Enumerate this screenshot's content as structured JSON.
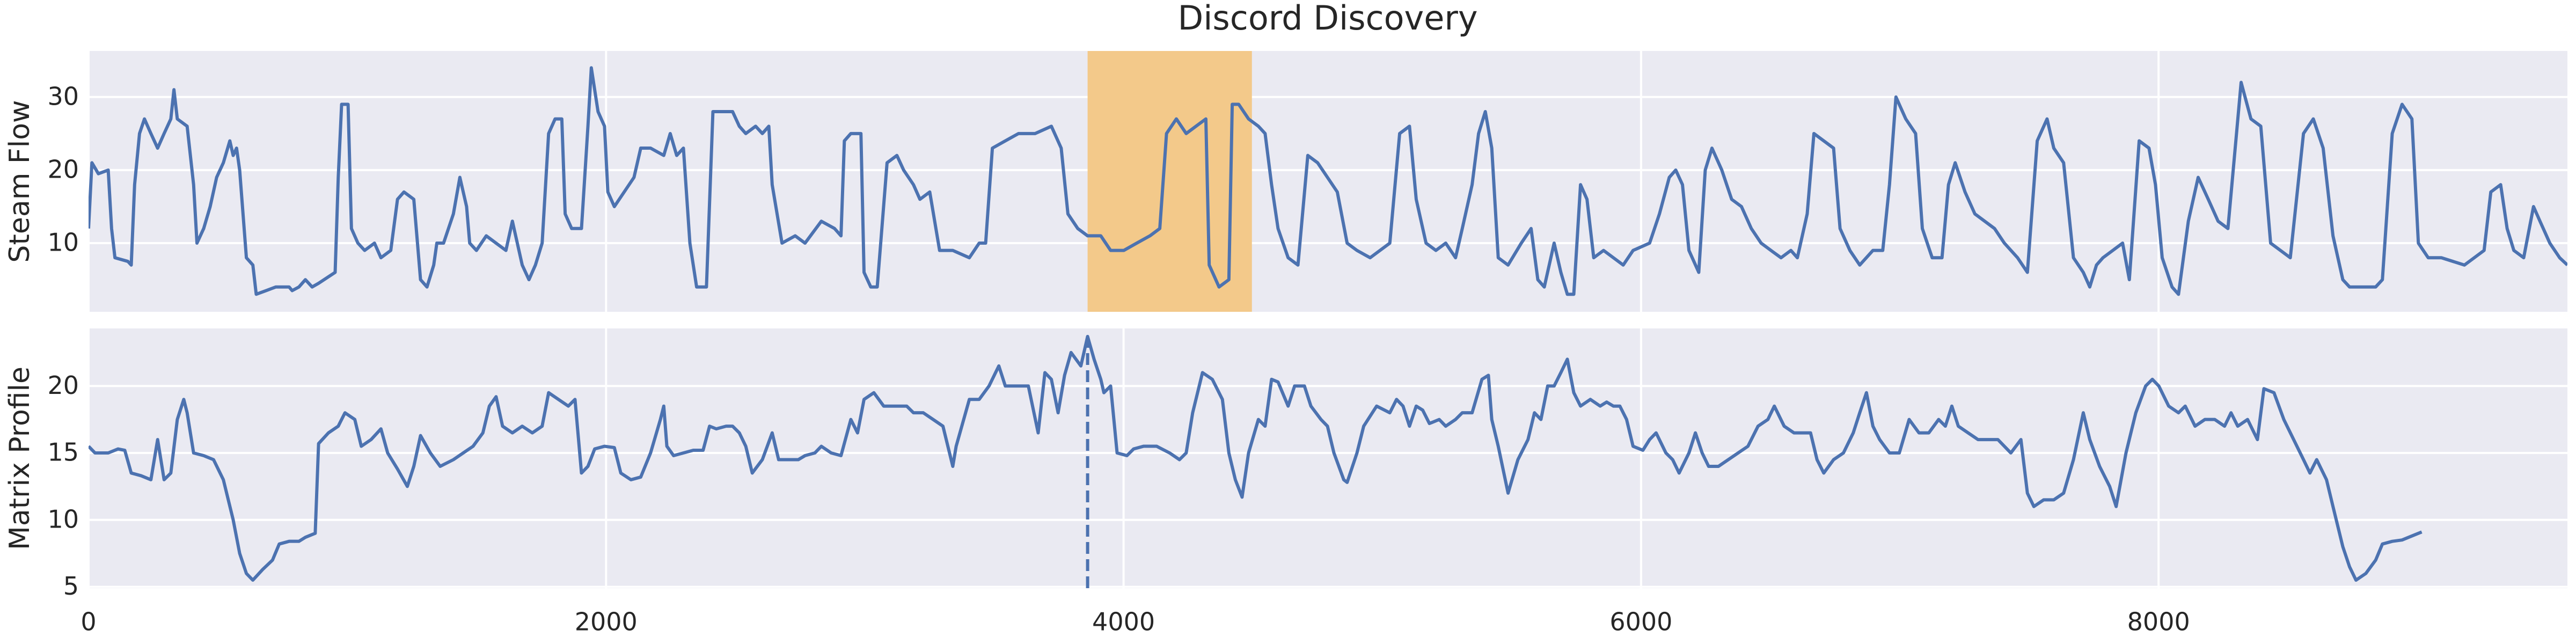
{
  "chart_data": [
    {
      "type": "line",
      "title": "Discord Discovery",
      "ylabel": "Steam Flow",
      "x": [
        0,
        13,
        38,
        76,
        89,
        102,
        152,
        165,
        178,
        197,
        216,
        241,
        267,
        292,
        318,
        330,
        343,
        381,
        406,
        419,
        445,
        470,
        495,
        521,
        546,
        559,
        572,
        584,
        610,
        635,
        648,
        686,
        724,
        775,
        787,
        813,
        838,
        864,
        889,
        953,
        965,
        978,
        1003,
        1016,
        1041,
        1067,
        1105,
        1130,
        1168,
        1194,
        1219,
        1257,
        1283,
        1308,
        1334,
        1346,
        1372,
        1410,
        1435,
        1461,
        1473,
        1499,
        1537,
        1575,
        1613,
        1638,
        1676,
        1702,
        1727,
        1753,
        1778,
        1803,
        1829,
        1842,
        1867,
        1905,
        1930,
        1943,
        1969,
        1994,
        2007,
        2032,
        2070,
        2108,
        2134,
        2172,
        2223,
        2248,
        2273,
        2299,
        2324,
        2350,
        2388,
        2413,
        2451,
        2489,
        2515,
        2540,
        2578,
        2604,
        2629,
        2642,
        2680,
        2731,
        2769,
        2832,
        2883,
        2908,
        2921,
        2946,
        2985,
        2997,
        3023,
        3048,
        3086,
        3124,
        3150,
        3188,
        3213,
        3251,
        3289,
        3340,
        3404,
        3442,
        3467,
        3493,
        3543,
        3594,
        3658,
        3721,
        3759,
        3785,
        3823,
        3861,
        3912,
        3950,
        4001,
        4051,
        4102,
        4140,
        4166,
        4204,
        4242,
        4280,
        4318,
        4331,
        4369,
        4407,
        4420,
        4445,
        4483,
        4521,
        4547,
        4572,
        4597,
        4636,
        4674,
        4712,
        4750,
        4788,
        4826,
        4864,
        4902,
        4953,
        4991,
        5029,
        5067,
        5105,
        5131,
        5169,
        5207,
        5245,
        5283,
        5309,
        5347,
        5372,
        5398,
        5423,
        5448,
        5486,
        5537,
        5575,
        5601,
        5626,
        5664,
        5690,
        5715,
        5740,
        5766,
        5791,
        5817,
        5855,
        5893,
        5931,
        5969,
        6033,
        6071,
        6109,
        6134,
        6160,
        6185,
        6223,
        6248,
        6274,
        6312,
        6350,
        6388,
        6426,
        6464,
        6502,
        6541,
        6579,
        6604,
        6642,
        6668,
        6706,
        6744,
        6769,
        6807,
        6845,
        6896,
        6934,
        6960,
        6985,
        7023,
        7061,
        7087,
        7125,
        7163,
        7188,
        7214,
        7252,
        7290,
        7328,
        7366,
        7404,
        7455,
        7493,
        7531,
        7569,
        7595,
        7633,
        7671,
        7709,
        7734,
        7760,
        7785,
        7823,
        7861,
        7887,
        7925,
        7963,
        7988,
        8014,
        8052,
        8077,
        8115,
        8153,
        8192,
        8230,
        8268,
        8319,
        8357,
        8395,
        8433,
        8471,
        8509,
        8560,
        8598,
        8636,
        8674,
        8712,
        8738,
        8839,
        8865,
        8903,
        8941,
        8979,
        9004,
        9042,
        9093,
        9182,
        9258,
        9284,
        9322,
        9347,
        9373,
        9411,
        9449,
        9474,
        9512,
        9550,
        9580
      ],
      "series": [
        {
          "color": "#4c72b0",
          "values": [
            12,
            21,
            19.5,
            20,
            12,
            8,
            7.5,
            7,
            18,
            25,
            27,
            25,
            23,
            25,
            27,
            31,
            27,
            26,
            18,
            10,
            12,
            15,
            19,
            21,
            24,
            22,
            23,
            20,
            8,
            7,
            3,
            3.5,
            4,
            4,
            3.5,
            4,
            5,
            4,
            4.5,
            6,
            19,
            29,
            29,
            12,
            10,
            9,
            10,
            8,
            9,
            16,
            17,
            16,
            5,
            4,
            7,
            10,
            10,
            14,
            19,
            15,
            10,
            9,
            11,
            10,
            9,
            13,
            7,
            5,
            7,
            10,
            25,
            27,
            27,
            14,
            12,
            12,
            26,
            34,
            28,
            26,
            17,
            15,
            17,
            19,
            23,
            23,
            22,
            25,
            22,
            23,
            10,
            4,
            4,
            28,
            28,
            28,
            26,
            25,
            26,
            25,
            26,
            18,
            10,
            11,
            10,
            13,
            12,
            11,
            24,
            25,
            25,
            6,
            4,
            4,
            21,
            22,
            20,
            18,
            16,
            17,
            9,
            9,
            8,
            10,
            10,
            23,
            24,
            25,
            25,
            26,
            23,
            14,
            12,
            11,
            11,
            9,
            9,
            10,
            11,
            12,
            25,
            27,
            25,
            26,
            27,
            7,
            4,
            5,
            29,
            29,
            27,
            26,
            25,
            18,
            12,
            8,
            7,
            22,
            21,
            19,
            17,
            10,
            9,
            8,
            9,
            10,
            25,
            26,
            16,
            10,
            9,
            10,
            8,
            12,
            18,
            25,
            28,
            23,
            8,
            7,
            10,
            12,
            5,
            4,
            10,
            6,
            3,
            3,
            18,
            16,
            8,
            9,
            8,
            7,
            9,
            10,
            14,
            19,
            20,
            18,
            9,
            6,
            20,
            23,
            20,
            16,
            15,
            12,
            10,
            9,
            8,
            9,
            8,
            14,
            25,
            24,
            23,
            12,
            9,
            7,
            9,
            9,
            18,
            30,
            27,
            25,
            12,
            8,
            8,
            18,
            21,
            17,
            14,
            13,
            12,
            10,
            8,
            6,
            24,
            27,
            23,
            21,
            8,
            6,
            4,
            7,
            8,
            9,
            10,
            5,
            24,
            23,
            18,
            8,
            4,
            3,
            13,
            19,
            16,
            13,
            12,
            32,
            27,
            26,
            10,
            9,
            8,
            25,
            27,
            23,
            11,
            5,
            4,
            4,
            5,
            25,
            29,
            27,
            10,
            8,
            8,
            7,
            9,
            17,
            18,
            12,
            9,
            8,
            15,
            13,
            10,
            8,
            7
          ]
        }
      ],
      "xlim": [
        0,
        9580
      ],
      "xticks": [
        0,
        2000,
        4000,
        6000,
        8000
      ],
      "ylim": [
        0.6,
        36.3
      ],
      "yticks": [
        10,
        20,
        30
      ],
      "grid": true,
      "span": {
        "start": 3861,
        "end": 4496,
        "color": "#f3c98a"
      }
    },
    {
      "type": "line",
      "ylabel": "Matrix Profile",
      "x": [
        0,
        25,
        76,
        114,
        140,
        165,
        203,
        241,
        267,
        292,
        318,
        343,
        368,
        381,
        406,
        445,
        483,
        521,
        559,
        584,
        610,
        635,
        673,
        711,
        737,
        775,
        813,
        838,
        876,
        889,
        927,
        965,
        991,
        1029,
        1054,
        1092,
        1130,
        1156,
        1194,
        1232,
        1257,
        1283,
        1321,
        1359,
        1410,
        1448,
        1486,
        1524,
        1549,
        1575,
        1600,
        1638,
        1676,
        1715,
        1753,
        1778,
        1816,
        1854,
        1880,
        1905,
        1930,
        1956,
        1994,
        2032,
        2057,
        2096,
        2134,
        2172,
        2210,
        2223,
        2235,
        2261,
        2299,
        2337,
        2375,
        2400,
        2426,
        2464,
        2489,
        2515,
        2540,
        2565,
        2604,
        2642,
        2667,
        2705,
        2743,
        2769,
        2807,
        2832,
        2870,
        2908,
        2946,
        2972,
        2997,
        3035,
        3073,
        3111,
        3162,
        3188,
        3226,
        3264,
        3302,
        3340,
        3353,
        3404,
        3442,
        3480,
        3518,
        3543,
        3581,
        3632,
        3670,
        3696,
        3721,
        3747,
        3772,
        3797,
        3835,
        3861,
        3886,
        3912,
        3924,
        3950,
        3975,
        4013,
        4039,
        4077,
        4128,
        4178,
        4216,
        4242,
        4267,
        4305,
        4343,
        4382,
        4407,
        4432,
        4458,
        4483,
        4521,
        4547,
        4572,
        4597,
        4636,
        4661,
        4699,
        4724,
        4763,
        4788,
        4813,
        4851,
        4864,
        4902,
        4928,
        4978,
        5029,
        5055,
        5080,
        5105,
        5131,
        5156,
        5182,
        5220,
        5245,
        5283,
        5309,
        5347,
        5385,
        5410,
        5423,
        5448,
        5486,
        5524,
        5563,
        5588,
        5613,
        5639,
        5664,
        5690,
        5715,
        5740,
        5766,
        5804,
        5842,
        5867,
        5893,
        5918,
        5944,
        5969,
        6007,
        6033,
        6058,
        6096,
        6122,
        6147,
        6185,
        6210,
        6236,
        6261,
        6299,
        6337,
        6375,
        6413,
        6452,
        6490,
        6515,
        6553,
        6591,
        6617,
        6655,
        6680,
        6706,
        6744,
        6782,
        6820,
        6845,
        6871,
        6896,
        6922,
        6960,
        6998,
        7036,
        7074,
        7112,
        7150,
        7176,
        7201,
        7226,
        7264,
        7302,
        7340,
        7379,
        7404,
        7429,
        7468,
        7493,
        7518,
        7556,
        7595,
        7633,
        7671,
        7709,
        7734,
        7772,
        7811,
        7836,
        7874,
        7912,
        7950,
        7976,
        8001,
        8039,
        8077,
        8103,
        8141,
        8179,
        8217,
        8255,
        8280,
        8306,
        8344,
        8382,
        8407,
        8446,
        8484,
        8522,
        8560,
        8585,
        8611,
        8649,
        8674,
        8712,
        8738,
        8763,
        8801,
        8839,
        8865,
        8903,
        8941,
        8979,
        9017
      ],
      "series": [
        {
          "color": "#4c72b0",
          "values": [
            15.5,
            15,
            15,
            15.3,
            15.2,
            13.5,
            13.3,
            13,
            16,
            13,
            13.5,
            17.5,
            19,
            18,
            15,
            14.8,
            14.5,
            13,
            10,
            7.5,
            6,
            5.5,
            6.3,
            7,
            8.2,
            8.4,
            8.4,
            8.7,
            9,
            15.7,
            16.5,
            17,
            18,
            17.5,
            15.5,
            16,
            16.8,
            15,
            13.8,
            12.5,
            14,
            16.3,
            15,
            14,
            14.5,
            15,
            15.5,
            16.5,
            18.5,
            19.2,
            17,
            16.5,
            17,
            16.5,
            17,
            19.5,
            19,
            18.5,
            19,
            13.5,
            14,
            15.3,
            15.5,
            15.4,
            13.5,
            13,
            13.2,
            15,
            17.5,
            18.5,
            15.5,
            14.8,
            15,
            15.2,
            15.2,
            17,
            16.8,
            17,
            17,
            16.5,
            15.5,
            13.5,
            14.5,
            16.5,
            14.5,
            14.5,
            14.5,
            14.8,
            15,
            15.5,
            15,
            14.8,
            17.5,
            16.5,
            19,
            19.5,
            18.5,
            18.5,
            18.5,
            18,
            18,
            17.5,
            17,
            14,
            15.5,
            19,
            19,
            20,
            21.5,
            20,
            20,
            20,
            16.5,
            21,
            20.5,
            18,
            20.8,
            22.5,
            21.5,
            23.7,
            22,
            20.5,
            19.5,
            20,
            15,
            14.8,
            15.3,
            15.5,
            15.5,
            15,
            14.5,
            15,
            18,
            21,
            20.5,
            19,
            15,
            13,
            11.7,
            15,
            17.5,
            17,
            20.5,
            20.3,
            18.5,
            20,
            20,
            18.5,
            17.5,
            17,
            15,
            13,
            12.8,
            15,
            17,
            18.5,
            18,
            19,
            18.5,
            17,
            18.5,
            18.2,
            17.2,
            17.5,
            17,
            17.5,
            18,
            18,
            20.5,
            20.8,
            17.5,
            15.5,
            12,
            14.5,
            16,
            18,
            17.5,
            20,
            20,
            21,
            22,
            19.5,
            18.5,
            19,
            18.5,
            18.8,
            18.5,
            18.5,
            17.5,
            15.5,
            15.2,
            16,
            16.5,
            15,
            14.5,
            13.5,
            15,
            16.5,
            15,
            14,
            14,
            14.5,
            15,
            15.5,
            17,
            17.5,
            18.5,
            17,
            16.5,
            16.5,
            16.5,
            14.5,
            13.5,
            14.5,
            15,
            16.5,
            18,
            19.5,
            17,
            16,
            15,
            15,
            17.5,
            16.5,
            16.5,
            17.5,
            17,
            18.5,
            17,
            16.5,
            16,
            16,
            16,
            15.5,
            15,
            16,
            12,
            11,
            11.5,
            11.5,
            12,
            14.5,
            18,
            16,
            14,
            12.5,
            11,
            15,
            18,
            20,
            20.5,
            20,
            18.5,
            18,
            18.5,
            17,
            17.5,
            17.5,
            17,
            18,
            17,
            17.5,
            16,
            19.8,
            19.5,
            17.5,
            16,
            14.5,
            13.5,
            14.5,
            13,
            11,
            8,
            6.5,
            5.5,
            6,
            7,
            8.2,
            8.4,
            8.5,
            8.8,
            9.1
          ]
        }
      ],
      "xlim": [
        0,
        9580
      ],
      "xticks": [
        0,
        2000,
        4000,
        6000,
        8000
      ],
      "ylim": [
        4.9,
        24.3
      ],
      "yticks": [
        5,
        10,
        15,
        20
      ],
      "grid": true,
      "vline": {
        "x": 3861,
        "style": "dashed"
      }
    }
  ]
}
